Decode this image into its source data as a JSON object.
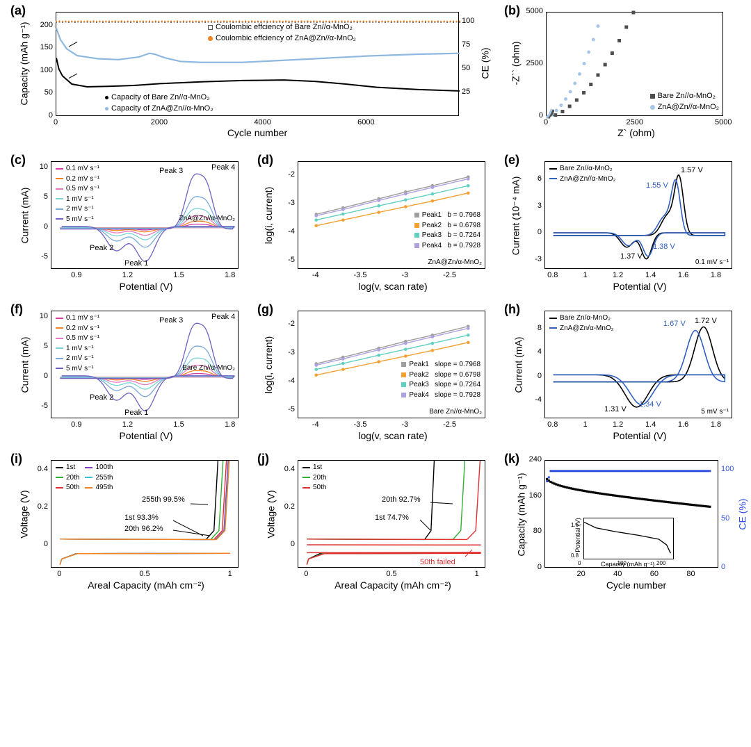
{
  "colors": {
    "black": "#000000",
    "orange": "#f58220",
    "lblue": "#8fb8e0",
    "dgray": "#555555",
    "sq_dark": "#4d4d4d",
    "sq_light": "#a8c6e8",
    "cv_mag": "#d63fa9",
    "cv_org": "#f58220",
    "cv_pink": "#e878c0",
    "cv_cyan": "#7ad4d4",
    "cv_lblue": "#7aa8d8",
    "cv_purple": "#7060c0",
    "peak_gray": "#9e9e9e",
    "peak_org": "#f5a030",
    "peak_teal": "#60d0c0",
    "peak_lav": "#b0a0e0",
    "e_black": "#000000",
    "e_blue": "#3060c0",
    "i_black": "#000000",
    "i_green": "#30b030",
    "i_red": "#e03030",
    "i_purple": "#8040c0",
    "i_cyan": "#40c0d0",
    "i_orange": "#f58220",
    "k_blue": "#3050e0"
  },
  "a": {
    "label": "(a)",
    "xlabel": "Cycle number",
    "ylabel_left": "Capacity (mAh g⁻¹)",
    "ylabel_right": "CE (%)",
    "xlim": [
      0,
      7800
    ],
    "xticks": [
      0,
      2000,
      4000,
      6000
    ],
    "ylim_left": [
      0,
      230
    ],
    "yticks_left": [
      0,
      50,
      100,
      150,
      200
    ],
    "ylim_right": [
      0,
      110
    ],
    "yticks_right": [
      25,
      50,
      75,
      100
    ],
    "legend_ce": [
      {
        "label": "Coulombic effciency of Bare Zn//α-MnO₂",
        "color": "#555555",
        "marker": "square-open"
      },
      {
        "label": "Coulombic effciency of ZnA@Zn//α-MnO₂",
        "color": "#f58220",
        "marker": "dot"
      }
    ],
    "legend_cap": [
      {
        "label": "Capacity of Bare Zn//α-MnO₂",
        "color": "#000000"
      },
      {
        "label": "Capacity of ZnA@Zn//α-MnO₂",
        "color": "#8fb8e0"
      }
    ],
    "series": {
      "ce_bare_y": 100,
      "ce_zna_y": 100,
      "cap_zna": [
        [
          0,
          195
        ],
        [
          80,
          170
        ],
        [
          200,
          150
        ],
        [
          400,
          135
        ],
        [
          800,
          128
        ],
        [
          1200,
          126
        ],
        [
          1600,
          132
        ],
        [
          1800,
          140
        ],
        [
          1900,
          138
        ],
        [
          2100,
          130
        ],
        [
          2400,
          122
        ],
        [
          2800,
          120
        ],
        [
          3600,
          120
        ],
        [
          5000,
          128
        ],
        [
          6000,
          134
        ],
        [
          7000,
          138
        ],
        [
          7800,
          140
        ]
      ],
      "cap_bare": [
        [
          0,
          130
        ],
        [
          50,
          105
        ],
        [
          120,
          90
        ],
        [
          300,
          72
        ],
        [
          600,
          66
        ],
        [
          1000,
          67
        ],
        [
          1500,
          69
        ],
        [
          2000,
          73
        ],
        [
          2800,
          77
        ],
        [
          3600,
          80
        ],
        [
          4400,
          81
        ],
        [
          5000,
          78
        ],
        [
          5600,
          72
        ],
        [
          6200,
          65
        ],
        [
          7000,
          60
        ],
        [
          7800,
          57
        ]
      ]
    }
  },
  "b": {
    "label": "(b)",
    "xlabel": "Z` (ohm)",
    "ylabel": "-Z`` (ohm)",
    "xlim": [
      0,
      5000
    ],
    "xticks": [
      0,
      2500,
      5000
    ],
    "ylim": [
      0,
      5000
    ],
    "yticks": [
      0,
      2500,
      5000
    ],
    "legend": [
      {
        "label": "Bare Zn//α-MnO₂",
        "color": "#4d4d4d"
      },
      {
        "label": "ZnA@Zn//α-MnO₂",
        "color": "#a8c6e8"
      }
    ],
    "bare": [
      [
        50,
        0
      ],
      [
        250,
        80
      ],
      [
        450,
        250
      ],
      [
        650,
        500
      ],
      [
        850,
        800
      ],
      [
        1050,
        1150
      ],
      [
        1250,
        1550
      ],
      [
        1450,
        2000
      ],
      [
        1650,
        2500
      ],
      [
        1850,
        3050
      ],
      [
        2050,
        3650
      ],
      [
        2250,
        4300
      ],
      [
        2450,
        5000
      ]
    ],
    "zna": [
      [
        30,
        0
      ],
      [
        150,
        100
      ],
      [
        280,
        300
      ],
      [
        410,
        550
      ],
      [
        540,
        850
      ],
      [
        670,
        1200
      ],
      [
        800,
        1600
      ],
      [
        930,
        2050
      ],
      [
        1060,
        2550
      ],
      [
        1190,
        3100
      ],
      [
        1320,
        3700
      ],
      [
        1450,
        4350
      ]
    ]
  },
  "c": {
    "label": "(c)",
    "xlabel": "Potential (V)",
    "ylabel": "Current (mA)",
    "xlim": [
      0.75,
      1.85
    ],
    "xticks": [
      0.9,
      1.2,
      1.5,
      1.8
    ],
    "ylim": [
      -7,
      11
    ],
    "yticks": [
      -5,
      0,
      5,
      10
    ],
    "title": "ZnA@Zn//α-MnO₂",
    "rates": [
      {
        "label": "0.1 mV s⁻¹",
        "color": "#d63fa9"
      },
      {
        "label": "0.2 mV s⁻¹",
        "color": "#f58220"
      },
      {
        "label": "0.5 mV s⁻¹",
        "color": "#e878c0"
      },
      {
        "label": "1 mV s⁻¹",
        "color": "#7ad4d4"
      },
      {
        "label": "2 mV s⁻¹",
        "color": "#7aa8d8"
      },
      {
        "label": "5 mV s⁻¹",
        "color": "#7060c0"
      }
    ],
    "peak_labels": [
      "Peak 1",
      "Peak 2",
      "Peak 3",
      "Peak 4"
    ]
  },
  "d": {
    "label": "(d)",
    "xlabel": "log(v, scan rate)",
    "ylabel": "log(i, current)",
    "xlim": [
      -4.2,
      -2.1
    ],
    "xticks": [
      -4.0,
      -3.5,
      -3.0,
      -2.5
    ],
    "ylim": [
      -5.3,
      -1.5
    ],
    "yticks": [
      -5,
      -4,
      -3,
      -2
    ],
    "title": "ZnA@Zn/α-MnO₂",
    "peaks": [
      {
        "label": "Peak1",
        "b": "b = 0.7968",
        "color": "#9e9e9e",
        "pts": [
          [
            -4,
            -3.35
          ],
          [
            -3.7,
            -3.12
          ],
          [
            -3.3,
            -2.8
          ],
          [
            -3.0,
            -2.56
          ],
          [
            -2.7,
            -2.34
          ],
          [
            -2.3,
            -2.03
          ]
        ]
      },
      {
        "label": "Peak2",
        "b": "b = 0.6798",
        "color": "#f5a030",
        "pts": [
          [
            -4,
            -3.75
          ],
          [
            -3.7,
            -3.55
          ],
          [
            -3.3,
            -3.28
          ],
          [
            -3.0,
            -3.08
          ],
          [
            -2.7,
            -2.88
          ],
          [
            -2.3,
            -2.6
          ]
        ]
      },
      {
        "label": "Peak3",
        "b": "b = 0.7264",
        "color": "#60d0c0",
        "pts": [
          [
            -4,
            -3.55
          ],
          [
            -3.7,
            -3.34
          ],
          [
            -3.3,
            -3.05
          ],
          [
            -3.0,
            -2.84
          ],
          [
            -2.7,
            -2.63
          ],
          [
            -2.3,
            -2.34
          ]
        ]
      },
      {
        "label": "Peak4",
        "b": "b = 0.7928",
        "color": "#b0a0e0",
        "pts": [
          [
            -4,
            -3.4
          ],
          [
            -3.7,
            -3.18
          ],
          [
            -3.3,
            -2.86
          ],
          [
            -3.0,
            -2.63
          ],
          [
            -2.7,
            -2.4
          ],
          [
            -2.3,
            -2.1
          ]
        ]
      }
    ]
  },
  "e": {
    "label": "(e)",
    "xlabel": "Potential (V)",
    "ylabel": "Current (10⁻⁴ mA)",
    "xlim": [
      0.75,
      1.9
    ],
    "xticks": [
      0.8,
      1.0,
      1.2,
      1.4,
      1.6,
      1.8
    ],
    "ylim": [
      -4,
      8
    ],
    "yticks": [
      -3,
      0,
      3,
      6
    ],
    "rate": "0.1 mV s⁻¹",
    "legend": [
      {
        "label": "Bare Zn//α-MnO₂",
        "color": "#000000"
      },
      {
        "label": "ZnA@Zn//α-MnO₂",
        "color": "#3060c0"
      }
    ],
    "labels": [
      {
        "text": "1.57 V",
        "color": "#000000"
      },
      {
        "text": "1.55 V",
        "color": "#3060c0"
      },
      {
        "text": "1.38 V",
        "color": "#3060c0"
      },
      {
        "text": "1.37 V",
        "color": "#000000"
      }
    ]
  },
  "f": {
    "label": "(f)",
    "title": "Bare Zn//α-MnO₂",
    "xlabel": "Potential (V)",
    "ylabel": "Current (mA)",
    "xlim": [
      0.75,
      1.85
    ],
    "xticks": [
      0.9,
      1.2,
      1.5,
      1.8
    ],
    "ylim": [
      -7,
      11
    ],
    "yticks": [
      -5,
      0,
      5,
      10
    ]
  },
  "g": {
    "label": "(g)",
    "title": "Bare Zn//α-MnO₂",
    "xlabel": "log(v, scan rate)",
    "ylabel": "log(i, current)",
    "xlim": [
      -4.2,
      -2.1
    ],
    "xticks": [
      -4.0,
      -3.5,
      -3.0,
      -2.5
    ],
    "ylim": [
      -5.3,
      -1.5
    ],
    "yticks": [
      -5,
      -4,
      -3,
      -2
    ],
    "peaks": [
      {
        "label": "Peak1",
        "b": "slope = 0.7968",
        "color": "#9e9e9e"
      },
      {
        "label": "Peak2",
        "b": "slope = 0.6798",
        "color": "#f5a030"
      },
      {
        "label": "Peak3",
        "b": "slope = 0.7264",
        "color": "#60d0c0"
      },
      {
        "label": "Peak4",
        "b": "slope = 0.7928",
        "color": "#b0a0e0"
      }
    ]
  },
  "h": {
    "label": "(h)",
    "xlabel": "Potential (V)",
    "ylabel": "Current (mA)",
    "xlim": [
      0.75,
      1.9
    ],
    "xticks": [
      0.8,
      1.0,
      1.2,
      1.4,
      1.6,
      1.8
    ],
    "ylim": [
      -7,
      11
    ],
    "yticks": [
      -4,
      0,
      4,
      8
    ],
    "rate": "5 mV s⁻¹",
    "legend": [
      {
        "label": "Bare Zn/α-MnO₂",
        "color": "#000000"
      },
      {
        "label": "ZnA@Zn/α-MnO₂",
        "color": "#3060c0"
      }
    ],
    "labels": [
      {
        "text": "1.72 V",
        "color": "#000000"
      },
      {
        "text": "1.67 V",
        "color": "#3060c0"
      },
      {
        "text": "1.34 V",
        "color": "#3060c0"
      },
      {
        "text": "1.31 V",
        "color": "#000000"
      }
    ]
  },
  "i": {
    "label": "(i)",
    "xlabel": "Areal Capacity (mAh cm⁻²)",
    "ylabel": "Voltage (V)",
    "xlim": [
      -0.05,
      1.05
    ],
    "xticks": [
      0.0,
      0.5,
      1.0
    ],
    "ylim": [
      -0.12,
      0.45
    ],
    "yticks": [
      0.0,
      0.2,
      0.4
    ],
    "legend": [
      {
        "label": "1st",
        "color": "#000000"
      },
      {
        "label": "20th",
        "color": "#30b030"
      },
      {
        "label": "50th",
        "color": "#e03030"
      },
      {
        "label": "100th",
        "color": "#8040c0"
      },
      {
        "label": "255th",
        "color": "#40c0d0"
      },
      {
        "label": "495th",
        "color": "#f58220"
      }
    ],
    "annos": [
      "255th 99.5%",
      "1st 93.3%",
      "20th 96.2%"
    ]
  },
  "j": {
    "label": "(j)",
    "xlabel": "Areal Capacity (mAh cm⁻²)",
    "ylabel": "Voltage (V)",
    "xlim": [
      -0.05,
      1.05
    ],
    "xticks": [
      0.0,
      0.5,
      1.0
    ],
    "ylim": [
      -0.12,
      0.45
    ],
    "yticks": [
      0.0,
      0.2,
      0.4
    ],
    "legend": [
      {
        "label": "1st",
        "color": "#000000"
      },
      {
        "label": "20th",
        "color": "#30b030"
      },
      {
        "label": "50th",
        "color": "#e03030"
      }
    ],
    "annos": [
      "20th 92.7%",
      "1st 74.7%",
      "50th failed"
    ]
  },
  "k": {
    "label": "(k)",
    "xlabel": "Cycle number",
    "ylabel_left": "Capacity (mAh g⁻¹)",
    "ylabel_right": "CE (%)",
    "xlim": [
      0,
      95
    ],
    "xticks": [
      20,
      40,
      60,
      80
    ],
    "ylim_left": [
      0,
      240
    ],
    "yticks_left": [
      0,
      80,
      160,
      240
    ],
    "ylim_right": [
      0,
      110
    ],
    "yticks_right": [
      0,
      50,
      100
    ],
    "inset": {
      "xlabel": "Capacity (mAh g⁻¹)",
      "ylabel": "Potential (V)",
      "xlim": [
        0,
        230
      ],
      "xticks": [
        0,
        100,
        200
      ],
      "ylim": [
        0.7,
        1.8
      ],
      "yticks": [
        0.8,
        1.6
      ]
    }
  }
}
